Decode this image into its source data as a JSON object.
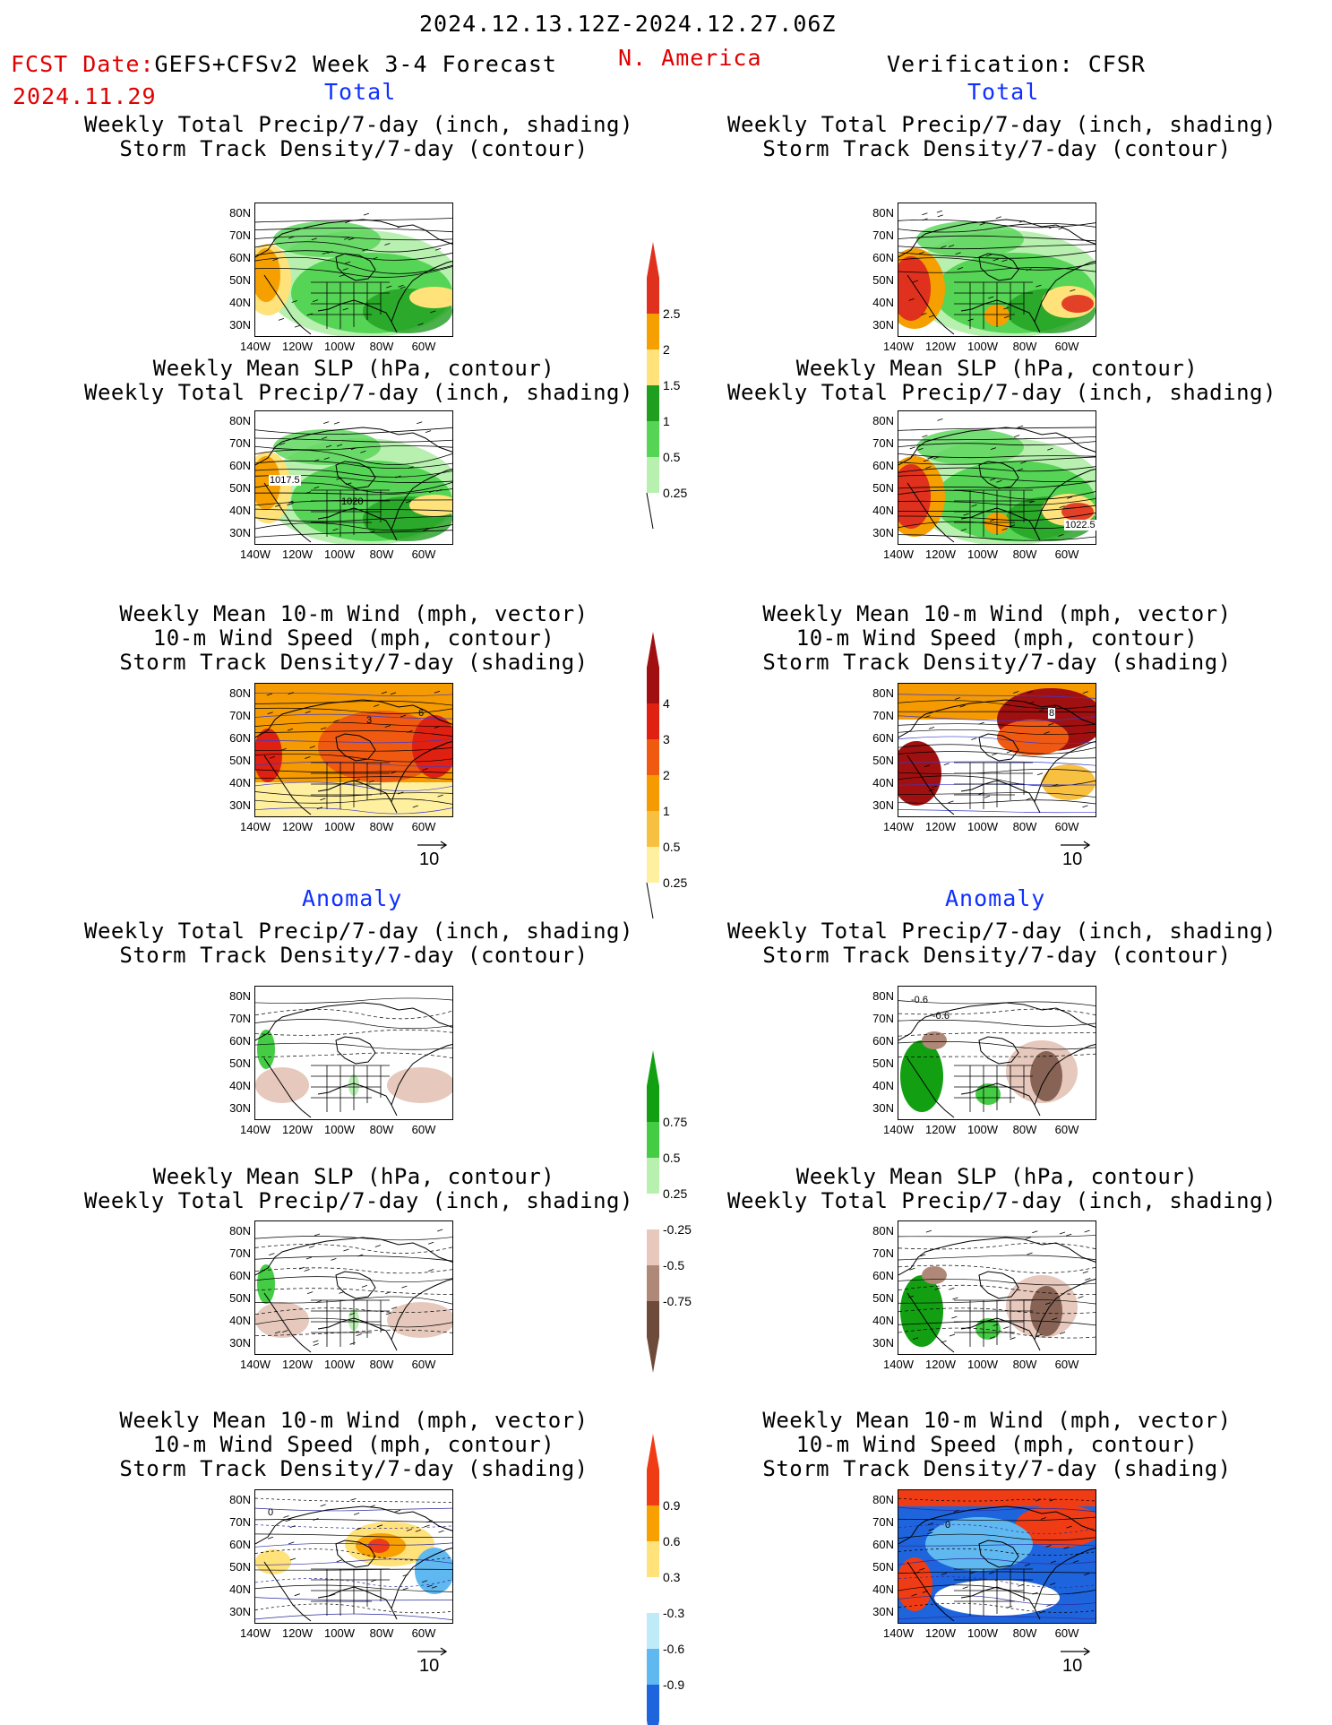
{
  "header": {
    "date_range": "2024.12.13.12Z-2024.12.27.06Z",
    "fcst_label": "FCST Date:",
    "model": "GEFS+CFSv2 Week 3-4 Forecast",
    "fcst_date": "2024.11.29",
    "region": "N. America",
    "verification": "Verification: CFSR"
  },
  "sections": {
    "total": "Total",
    "anomaly": "Anomaly"
  },
  "titles": {
    "precip_storm": [
      "Weekly Total Precip/7-day (inch, shading)",
      "Storm Track Density/7-day (contour)"
    ],
    "slp_precip": [
      "Weekly Mean SLP (hPa, contour)",
      "Weekly Total Precip/7-day (inch, shading)"
    ],
    "wind_storm": [
      "Weekly Mean 10-m Wind (mph, vector)",
      "10-m Wind Speed (mph, contour)",
      "Storm Track Density/7-day (shading)"
    ]
  },
  "axes": {
    "lat_labels": [
      "80N",
      "70N",
      "60N",
      "50N",
      "40N",
      "30N"
    ],
    "lon_labels": [
      "140W",
      "120W",
      "100W",
      "80W",
      "60W"
    ]
  },
  "vector_ref": "10",
  "contour_labels": {
    "slp_fcst_a": "1017.5",
    "slp_fcst_b": "1020",
    "slp_cfsr": "1022.5",
    "storm_anom_a": "-0.6",
    "storm_anom_b": "-0.6",
    "wind_fcst_a": "3",
    "wind_fcst_b": "6",
    "wind_cfsr_a": "8",
    "wind_anom_0": "0"
  },
  "colorbars": {
    "precip_total": {
      "labels": [
        "2.5",
        "2",
        "1.5",
        "1",
        "0.5",
        "0.25"
      ],
      "colors": [
        "#e0301e",
        "#f5a000",
        "#ffe27a",
        "#1f9e1f",
        "#55d455",
        "#b8f0b0"
      ]
    },
    "storm_total": {
      "labels": [
        "4",
        "3",
        "2",
        "1",
        "0.5",
        "0.25"
      ],
      "colors": [
        "#a01010",
        "#e02010",
        "#f05a10",
        "#f59a00",
        "#f8c040",
        "#fff0a0"
      ]
    },
    "precip_anom": {
      "labels": [
        "0.75",
        "0.5",
        "0.25",
        "-0.25",
        "-0.5",
        "-0.75"
      ],
      "colors_pos": [
        "#12a012",
        "#44cc44",
        "#b8f0b0"
      ],
      "colors_neg": [
        "#e6c8bc",
        "#b08878",
        "#6e4a3a"
      ]
    },
    "storm_anom": {
      "labels": [
        "0.9",
        "0.6",
        "0.3",
        "-0.3",
        "-0.6",
        "-0.9"
      ],
      "colors_pos": [
        "#f03c14",
        "#f8a000",
        "#ffe27a"
      ],
      "colors_neg": [
        "#bfeaf8",
        "#60b8f0",
        "#1e64dc"
      ]
    }
  }
}
